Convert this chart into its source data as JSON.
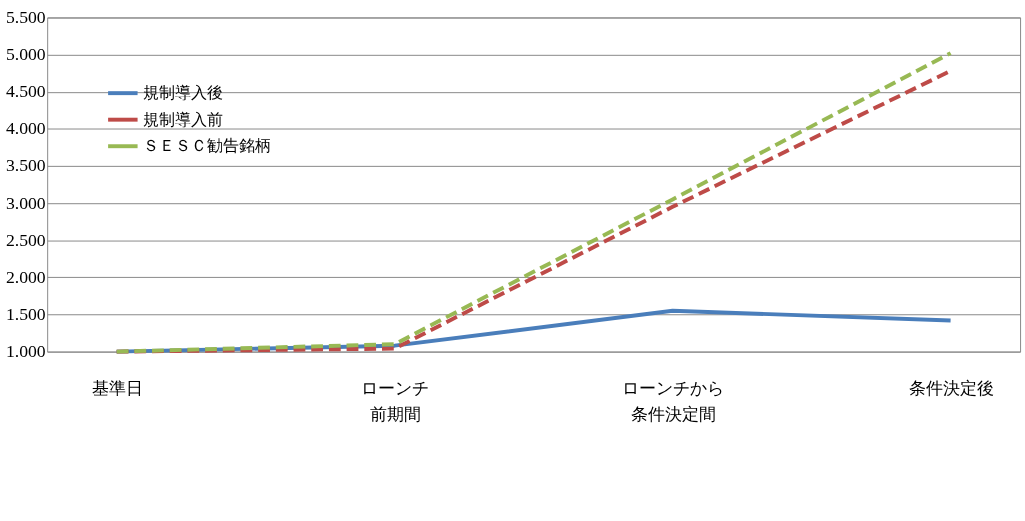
{
  "chart_data": {
    "type": "line",
    "categories": [
      "基準日",
      "ローンチ前期間",
      "ローンチから条件決定間",
      "条件決定後"
    ],
    "series": [
      {
        "name": "規制導入後",
        "color": "#4a7ebb",
        "line_style": "solid",
        "values": [
          1.0,
          1.08,
          1.55,
          1.42
        ]
      },
      {
        "name": "規制導入前",
        "color": "#be4b48",
        "line_style": "dashed",
        "values": [
          1.0,
          1.04,
          2.95,
          4.78
        ]
      },
      {
        "name": "ＳＥＳＣ勧告銘柄",
        "color": "#98b954",
        "line_style": "dashed",
        "values": [
          1.0,
          1.1,
          3.05,
          5.02
        ]
      }
    ],
    "ylim": [
      1.0,
      5.5
    ],
    "yticks": [
      {
        "value": 1.0,
        "label": "1.000"
      },
      {
        "value": 1.5,
        "label": "1.500"
      },
      {
        "value": 2.0,
        "label": "2.000"
      },
      {
        "value": 2.5,
        "label": "2.500"
      },
      {
        "value": 3.0,
        "label": "3.000"
      },
      {
        "value": 3.5,
        "label": "3.500"
      },
      {
        "value": 4.0,
        "label": "4.000"
      },
      {
        "value": 4.5,
        "label": "4.500"
      },
      {
        "value": 5.0,
        "label": "5.000"
      },
      {
        "value": 5.5,
        "label": "5.500"
      }
    ],
    "grid": "y",
    "legend": "top left",
    "marker": "none"
  }
}
